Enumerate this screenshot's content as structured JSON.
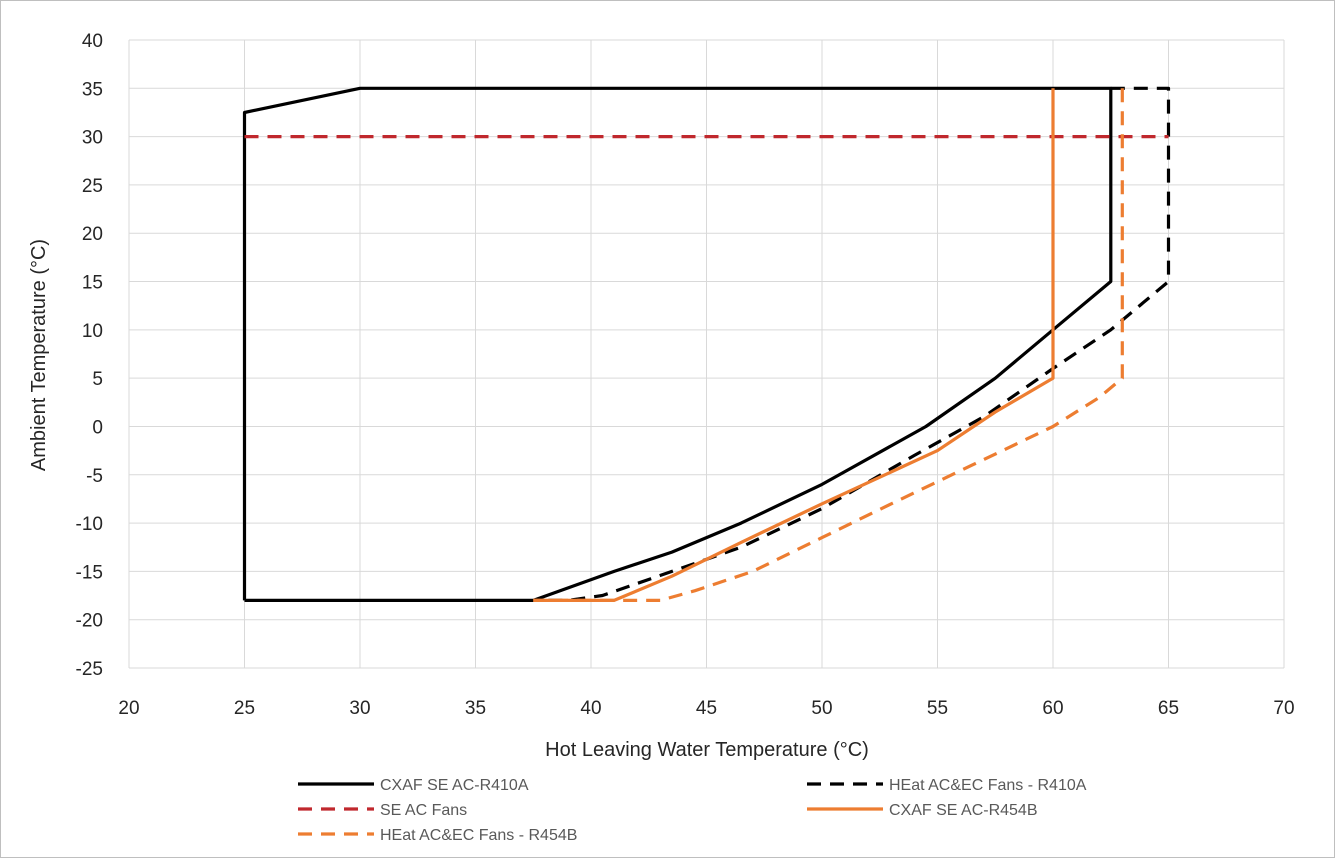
{
  "chart_data": {
    "type": "line",
    "title": "",
    "xlabel": "Hot Leaving Water Temperature (°C)",
    "ylabel": "Ambient Temperature (°C)",
    "xlim": [
      20,
      70
    ],
    "ylim": [
      -25,
      40
    ],
    "x_ticks": [
      20,
      25,
      30,
      35,
      40,
      45,
      50,
      55,
      60,
      65,
      70
    ],
    "y_ticks": [
      40,
      35,
      30,
      25,
      20,
      15,
      10,
      5,
      0,
      -5,
      -10,
      -15,
      -20,
      -25
    ],
    "grid": true,
    "legend_position": "bottom",
    "series": [
      {
        "name": "CXAF SE AC-R410A",
        "color": "#000000",
        "dash": "solid",
        "points": [
          [
            25,
            -18
          ],
          [
            25,
            32.5
          ],
          [
            30,
            35
          ],
          [
            62.5,
            35
          ],
          [
            62.5,
            15
          ],
          [
            60,
            10
          ],
          [
            57.5,
            5
          ],
          [
            54.5,
            0
          ],
          [
            50,
            -6
          ],
          [
            46.5,
            -10
          ],
          [
            43.5,
            -13
          ],
          [
            41,
            -15
          ],
          [
            37.5,
            -18
          ],
          [
            25,
            -18
          ]
        ]
      },
      {
        "name": "HEat AC&EC Fans - R410A",
        "color": "#000000",
        "dash": "dashed",
        "points": [
          [
            62.5,
            35
          ],
          [
            65,
            35
          ],
          [
            65,
            15
          ],
          [
            62.5,
            10
          ],
          [
            60,
            6
          ],
          [
            57,
            1
          ],
          [
            54,
            -3
          ],
          [
            50,
            -8.5
          ],
          [
            46.5,
            -12.5
          ],
          [
            43.5,
            -15
          ],
          [
            40.5,
            -17.5
          ],
          [
            39,
            -18
          ],
          [
            37.5,
            -18
          ]
        ]
      },
      {
        "name": "SE AC Fans",
        "color": "#c0282d",
        "dash": "dashed",
        "points": [
          [
            25,
            30
          ],
          [
            65,
            30
          ]
        ]
      },
      {
        "name": "CXAF SE AC-R454B",
        "color": "#ed7d31",
        "dash": "solid",
        "points": [
          [
            60,
            35
          ],
          [
            60,
            5
          ],
          [
            57.5,
            1.5
          ],
          [
            55,
            -2.5
          ],
          [
            50,
            -8
          ],
          [
            46.5,
            -12
          ],
          [
            43.5,
            -15.5
          ],
          [
            41,
            -18
          ],
          [
            37.5,
            -18
          ]
        ]
      },
      {
        "name": "HEat AC&EC Fans - R454B",
        "color": "#ed7d31",
        "dash": "dashed",
        "points": [
          [
            63,
            35
          ],
          [
            63,
            5
          ],
          [
            62,
            3
          ],
          [
            60,
            0
          ],
          [
            56.5,
            -4
          ],
          [
            53,
            -8
          ],
          [
            50,
            -11.5
          ],
          [
            47,
            -15
          ],
          [
            44.5,
            -17
          ],
          [
            43,
            -18
          ],
          [
            37.5,
            -18
          ]
        ]
      }
    ]
  }
}
